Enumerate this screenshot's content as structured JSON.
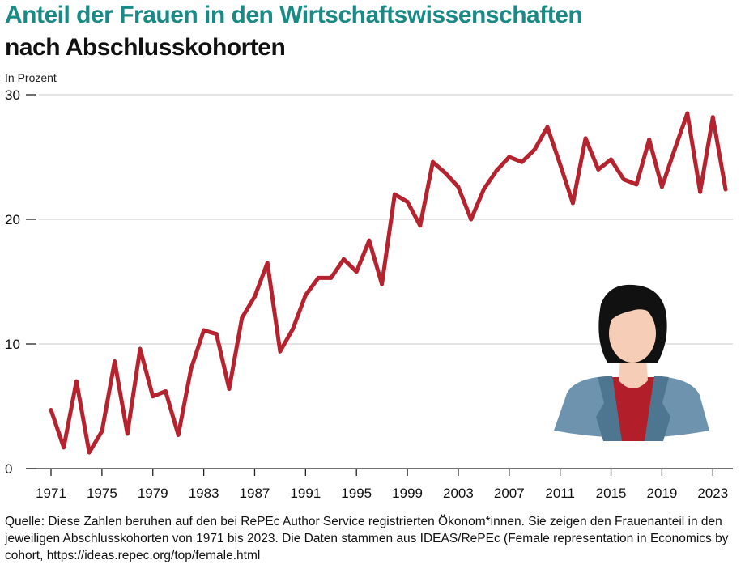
{
  "title": "Anteil der Frauen in den Wirtschaftswissenschaften",
  "subtitle": "nach Abschlusskohorten",
  "unit": "In Prozent",
  "source": "Quelle: Diese Zahlen beruhen auf den bei RePEc Author Service registrierten Ökonom*innen. Sie zeigen den Frauenanteil in den jeweiligen Abschlusskohorten von 1971 bis 2023. Die Daten stammen aus IDEAS/RePEc (Female representation in Economics by cohort, https://ideas.repec.org/top/female.html",
  "colors": {
    "line": "#b5232f",
    "title": "#1a8a86",
    "grid": "#c8c8c8"
  },
  "icon": "woman-avatar-icon",
  "chart_data": {
    "type": "line",
    "ylim": [
      0,
      30
    ],
    "xlim": [
      1971,
      2024
    ],
    "yticks": [
      0,
      10,
      20,
      30
    ],
    "xticks": [
      1971,
      1975,
      1979,
      1983,
      1987,
      1991,
      1995,
      1999,
      2003,
      2007,
      2011,
      2015,
      2019,
      2023
    ],
    "grid": true,
    "x": [
      1971,
      1972,
      1973,
      1974,
      1975,
      1976,
      1977,
      1978,
      1979,
      1980,
      1981,
      1982,
      1983,
      1984,
      1985,
      1986,
      1987,
      1988,
      1989,
      1990,
      1991,
      1992,
      1993,
      1994,
      1995,
      1996,
      1997,
      1998,
      1999,
      2000,
      2001,
      2002,
      2003,
      2004,
      2005,
      2006,
      2007,
      2008,
      2009,
      2010,
      2011,
      2012,
      2013,
      2014,
      2015,
      2016,
      2017,
      2018,
      2019,
      2020,
      2021,
      2022,
      2023,
      2024
    ],
    "series": [
      {
        "values": [
          4.7,
          1.7,
          7.0,
          1.3,
          3.0,
          8.6,
          2.8,
          9.6,
          5.8,
          6.2,
          2.7,
          8.0,
          11.1,
          10.8,
          6.4,
          12.1,
          13.8,
          16.5,
          9.4,
          11.2,
          13.9,
          15.3,
          15.3,
          16.8,
          15.8,
          18.3,
          14.8,
          22.0,
          21.4,
          19.5,
          24.6,
          23.7,
          22.6,
          20.0,
          22.4,
          23.9,
          25.0,
          24.6,
          25.6,
          27.4,
          24.4,
          21.3,
          26.5,
          24.0,
          24.8,
          23.2,
          22.8,
          26.4,
          22.6,
          25.6,
          28.5,
          22.2,
          28.2,
          22.4
        ]
      }
    ]
  }
}
